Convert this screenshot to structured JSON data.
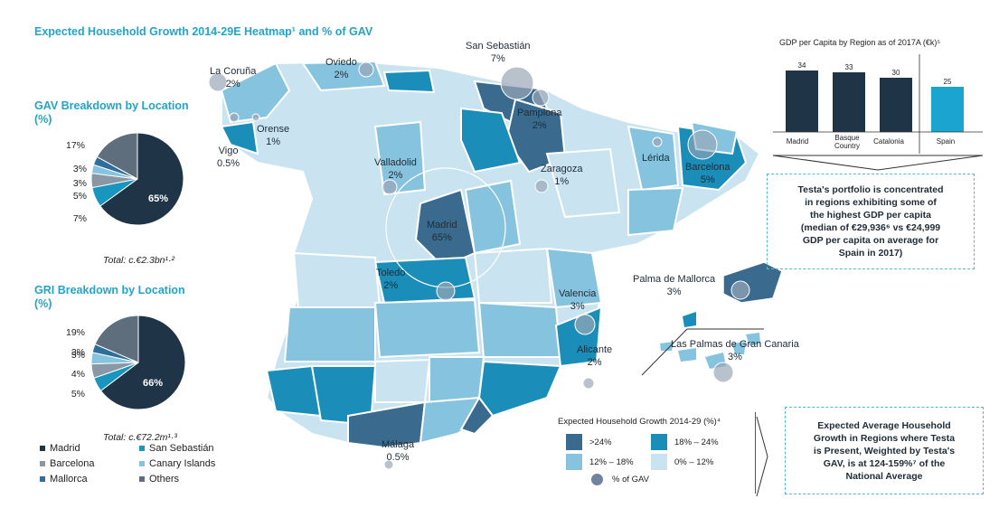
{
  "title": "Expected Household Growth 2014-29E Heatmap¹ and % of GAV",
  "gav": {
    "title_line1": "GAV Breakdown by Location",
    "title_line2": "(%)",
    "total": "Total: c.€2.3bn¹·²",
    "labels": [
      "65%",
      "7%",
      "5%",
      "3%",
      "3%",
      "17%"
    ]
  },
  "gri": {
    "title_line1": "GRI Breakdown by Location",
    "title_line2": "(%)",
    "total": "Total: c.€72.2m¹·³",
    "labels": [
      "66%",
      "5%",
      "5%",
      "4%",
      "3%",
      "19%"
    ]
  },
  "chart_data": [
    {
      "type": "pie",
      "title": "GAV Breakdown by Location (%)",
      "categories": [
        "Madrid",
        "San Sebastián",
        "Barcelona",
        "Canary Islands",
        "Mallorca",
        "Others"
      ],
      "values": [
        65,
        7,
        5,
        3,
        3,
        17
      ]
    },
    {
      "type": "pie",
      "title": "GRI Breakdown by Location (%)",
      "categories": [
        "Madrid",
        "San Sebastián",
        "Barcelona",
        "Canary Islands",
        "Mallorca",
        "Others"
      ],
      "values": [
        66,
        5,
        5,
        4,
        3,
        19
      ]
    },
    {
      "type": "bar",
      "title": "GDP per Capita by Region as of 2017A (€k)⁵",
      "categories": [
        "Madrid",
        "Basque Country",
        "Catalonia",
        "Spain"
      ],
      "values": [
        34,
        33,
        30,
        25
      ]
    }
  ],
  "pie_legend": [
    {
      "label": "Madrid",
      "color": "#1f3446"
    },
    {
      "label": "San Sebastián",
      "color": "#1a95bd"
    },
    {
      "label": "Barcelona",
      "color": "#8a98a6"
    },
    {
      "label": "Canary Islands",
      "color": "#86c3df"
    },
    {
      "label": "Mallorca",
      "color": "#2d6f9a"
    },
    {
      "label": "Others",
      "color": "#5e6e7c"
    }
  ],
  "cities": [
    {
      "name": "La Coruña",
      "pct": "2%"
    },
    {
      "name": "Oviedo",
      "pct": "2%"
    },
    {
      "name": "San Sebastián",
      "pct": "7%"
    },
    {
      "name": "Orense",
      "pct": "1%"
    },
    {
      "name": "Vigo",
      "pct": "0.5%"
    },
    {
      "name": "Pamplona",
      "pct": "2%"
    },
    {
      "name": "Valladolid",
      "pct": "2%"
    },
    {
      "name": "Zaragoza",
      "pct": "1%"
    },
    {
      "name": "Lérida",
      "pct": ""
    },
    {
      "name": "Barcelona",
      "pct": "5%"
    },
    {
      "name": "Madrid",
      "pct": "65%"
    },
    {
      "name": "Toledo",
      "pct": "2%"
    },
    {
      "name": "Palma de Mallorca",
      "pct": "3%"
    },
    {
      "name": "Valencia",
      "pct": "3%"
    },
    {
      "name": "Las Palmas de Gran Canaria",
      "pct": "3%"
    },
    {
      "name": "Alicante",
      "pct": "2%"
    },
    {
      "name": "Málaga",
      "pct": "0.5%"
    }
  ],
  "gdp": {
    "title": "GDP per Capita by Region as of 2017A (€k)⁵",
    "bars": [
      {
        "label": "Madrid",
        "value": "34"
      },
      {
        "label": "Basque Country",
        "value": "33"
      },
      {
        "label": "Catalonia",
        "value": "30"
      },
      {
        "label": "Spain",
        "value": "25"
      }
    ],
    "colors": {
      "regions": "#1f3446",
      "spain": "#1aa4d0"
    }
  },
  "box1": {
    "lines": [
      "Testa's portfolio is concentrated",
      "in regions exhibiting some of",
      "the highest GDP per capita",
      "(median of €29,936⁶ vs €24,999",
      "GDP per capita on average for",
      "Spain in 2017)"
    ]
  },
  "box2": {
    "lines": [
      "Expected Average Household",
      "Growth in Regions where Testa",
      "is Present, Weighted by Testa's",
      "GAV, is at 124-159%⁷ of the",
      "National Average"
    ]
  },
  "hh_legend": {
    "title": "Expected Household Growth 2014-29 (%)⁴",
    "items": [
      {
        "label": ">24%",
        "color": "#3a6b8f"
      },
      {
        "label": "18% – 24%",
        "color": "#1a8db8"
      },
      {
        "label": "12% – 18%",
        "color": "#86c3df"
      },
      {
        "label": "0% – 12%",
        "color": "#c9e4f0"
      }
    ],
    "gav_label": "% of GAV"
  }
}
